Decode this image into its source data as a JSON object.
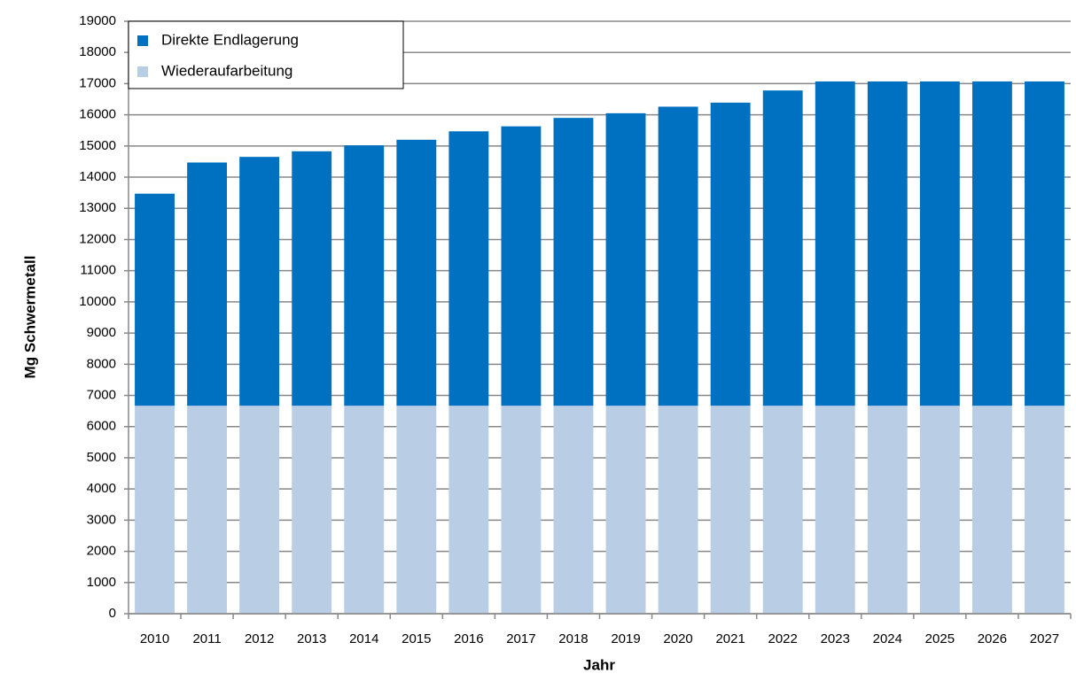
{
  "chart_data": {
    "type": "stacked_bar",
    "x_label": "Jahr",
    "y_label": "Mg Schwermetall",
    "categories": [
      "2010",
      "2011",
      "2012",
      "2013",
      "2014",
      "2015",
      "2016",
      "2017",
      "2018",
      "2019",
      "2020",
      "2021",
      "2022",
      "2023",
      "2024",
      "2025",
      "2026",
      "2027"
    ],
    "series": [
      {
        "name": "Direkte Endlagerung",
        "color": "#0070c0",
        "values": [
          6800,
          7800,
          7980,
          8160,
          8350,
          8530,
          8800,
          8960,
          9230,
          9380,
          9590,
          9720,
          10110,
          10400,
          10400,
          10400,
          10400,
          10400
        ]
      },
      {
        "name": "Wiederaufarbeitung",
        "color": "#b9cde5",
        "values": [
          6670,
          6670,
          6670,
          6670,
          6670,
          6670,
          6670,
          6670,
          6670,
          6670,
          6670,
          6670,
          6670,
          6670,
          6670,
          6670,
          6670,
          6670
        ]
      }
    ],
    "ylim": [
      0,
      19000
    ],
    "yticks": [
      0,
      1000,
      2000,
      3000,
      4000,
      5000,
      6000,
      7000,
      8000,
      9000,
      10000,
      11000,
      12000,
      13000,
      14000,
      15000,
      16000,
      17000,
      18000,
      19000
    ],
    "grid": true,
    "legend": "top-left"
  }
}
